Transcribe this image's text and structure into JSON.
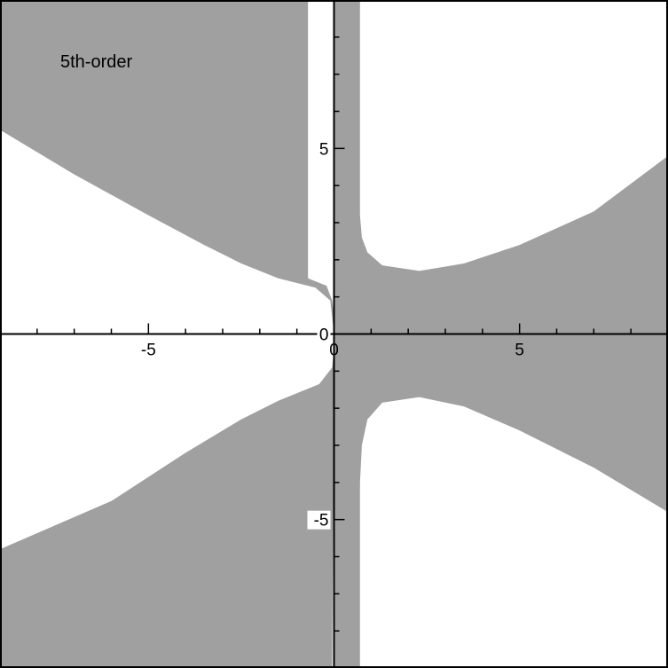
{
  "chart_data": {
    "type": "area",
    "title": "5th-order",
    "xlabel": "",
    "ylabel": "",
    "xlim": [
      -9,
      9
    ],
    "ylim": [
      -9,
      9
    ],
    "grid": false,
    "x_ticks": [
      {
        "value": -5,
        "label": "-5"
      },
      {
        "value": 0,
        "label": "0"
      },
      {
        "value": 5,
        "label": "5"
      }
    ],
    "y_ticks": [
      {
        "value": 5,
        "label": "5"
      },
      {
        "value": 0,
        "label": "0"
      },
      {
        "value": -5,
        "label": "-5"
      }
    ],
    "region_color": "#a0a0a0",
    "background_color": "#ffffff",
    "regions": [
      {
        "name": "upper-left",
        "points": [
          [
            -9,
            9
          ],
          [
            -0.7,
            9
          ],
          [
            -0.7,
            1.5
          ],
          [
            -0.2,
            1.3
          ],
          [
            -0.05,
            0.9
          ],
          [
            0,
            0.5
          ],
          [
            0,
            0
          ],
          [
            -0.1,
            0.9
          ],
          [
            -0.5,
            1.25
          ],
          [
            -1.5,
            1.5
          ],
          [
            -2.5,
            1.9
          ],
          [
            -3.5,
            2.4
          ],
          [
            -5,
            3.2
          ],
          [
            -7,
            4.3
          ],
          [
            -9,
            5.5
          ]
        ]
      },
      {
        "name": "lower-left",
        "points": [
          [
            -9,
            -9
          ],
          [
            -0.05,
            -9
          ],
          [
            0,
            -0.4
          ],
          [
            -0.05,
            -0.9
          ],
          [
            -0.4,
            -1.35
          ],
          [
            -1.5,
            -1.8
          ],
          [
            -2.5,
            -2.3
          ],
          [
            -4,
            -3.2
          ],
          [
            -6,
            -4.5
          ],
          [
            -9,
            -5.8
          ]
        ]
      },
      {
        "name": "right-band",
        "points": [
          [
            0.7,
            9
          ],
          [
            0.7,
            3.2
          ],
          [
            0.75,
            2.6
          ],
          [
            0.9,
            2.2
          ],
          [
            1.3,
            1.85
          ],
          [
            2.3,
            1.7
          ],
          [
            3.5,
            1.9
          ],
          [
            5,
            2.4
          ],
          [
            7,
            3.3
          ],
          [
            9,
            4.8
          ],
          [
            9,
            -4.8
          ],
          [
            7,
            -3.6
          ],
          [
            5,
            -2.6
          ],
          [
            3.5,
            -1.95
          ],
          [
            2.3,
            -1.7
          ],
          [
            1.3,
            -1.85
          ],
          [
            0.9,
            -2.3
          ],
          [
            0.75,
            -3
          ],
          [
            0.7,
            -4
          ],
          [
            0.7,
            -9
          ],
          [
            0,
            -9
          ],
          [
            0,
            9
          ]
        ]
      }
    ]
  }
}
